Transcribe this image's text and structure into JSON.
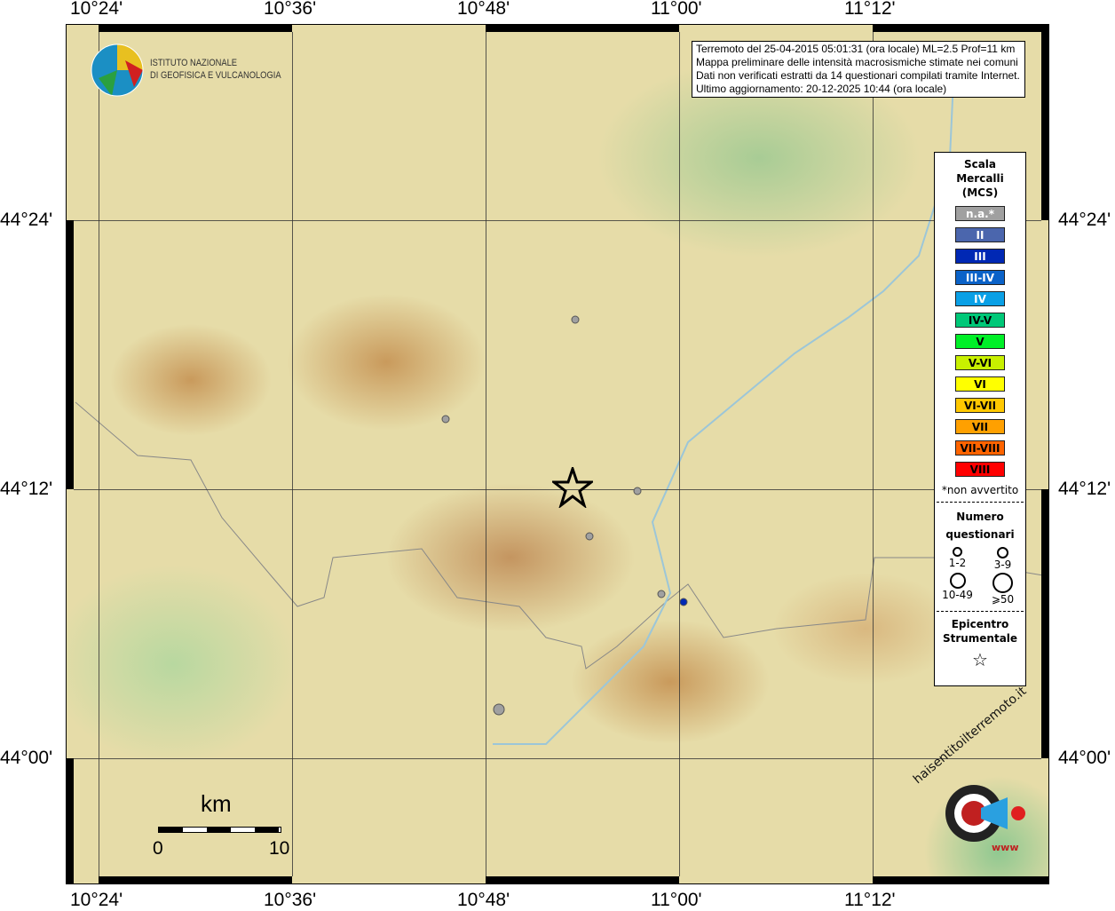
{
  "axes": {
    "top": [
      "10°24'",
      "10°36'",
      "10°48'",
      "11°00'",
      "11°12'"
    ],
    "bottom": [
      "10°24'",
      "10°36'",
      "10°48'",
      "11°00'",
      "11°12'"
    ],
    "left": [
      "44°24'",
      "44°12'",
      "44°00'"
    ],
    "right": [
      "44°24'",
      "44°12'",
      "44°00'"
    ]
  },
  "logo": {
    "line1": "ISTITUTO NAZIONALE",
    "line2": "DI GEOFISICA E VULCANOLOGIA"
  },
  "info": [
    "Terremoto del 25-04-2015 05:01:31 (ora locale) ML=2.5 Prof=11 km",
    "Mappa preliminare delle intensità macrosismiche stimate nei comuni",
    "Dati non verificati estratti da 14 questionari compilati tramite Internet.",
    "Ultimo aggiornamento: 20-12-2025 10:44 (ora locale)"
  ],
  "legend": {
    "title": [
      "Scala",
      "Mercalli",
      "(MCS)"
    ],
    "scale": [
      {
        "label": "n.a.*",
        "color": "#a0a0a0",
        "text": "#fff"
      },
      {
        "label": "II",
        "color": "#4b66ad",
        "text": "#fff"
      },
      {
        "label": "III",
        "color": "#0028b4",
        "text": "#fff"
      },
      {
        "label": "III-IV",
        "color": "#0a62c8",
        "text": "#fff"
      },
      {
        "label": "IV",
        "color": "#0aa0e6",
        "text": "#fff"
      },
      {
        "label": "IV-V",
        "color": "#00c878",
        "text": "#000"
      },
      {
        "label": "V",
        "color": "#00f028",
        "text": "#000"
      },
      {
        "label": "V-VI",
        "color": "#c8f000",
        "text": "#000"
      },
      {
        "label": "VI",
        "color": "#ffff00",
        "text": "#000"
      },
      {
        "label": "VI-VII",
        "color": "#ffc800",
        "text": "#000"
      },
      {
        "label": "VII",
        "color": "#ffa000",
        "text": "#000"
      },
      {
        "label": "VII-VIII",
        "color": "#ff6400",
        "text": "#000"
      },
      {
        "label": "VIII",
        "color": "#ff0000",
        "text": "#000"
      }
    ],
    "note": "*non avvertito",
    "count_title": [
      "Numero",
      "questionari"
    ],
    "counts": [
      "1-2",
      "3-9",
      "10-49",
      "⩾50"
    ],
    "epicenter_title": [
      "Epicentro",
      "Strumentale"
    ]
  },
  "scalebar": {
    "unit": "km",
    "start": "0",
    "end": "10"
  },
  "brand": {
    "text": "haisentitoilterremoto.it",
    "url": "www"
  },
  "points": [
    {
      "lon": 10.893,
      "lat": 44.326,
      "intensity": "n.a.*",
      "count": "1-2"
    },
    {
      "lon": 10.759,
      "lat": 44.252,
      "intensity": "n.a.*",
      "count": "1-2"
    },
    {
      "lon": 10.957,
      "lat": 44.199,
      "intensity": "n.a.*",
      "count": "1-2"
    },
    {
      "lon": 10.907,
      "lat": 44.165,
      "intensity": "n.a.*",
      "count": "1-2"
    },
    {
      "lon": 10.982,
      "lat": 44.122,
      "intensity": "n.a.*",
      "count": "1-2"
    },
    {
      "lon": 11.005,
      "lat": 44.116,
      "intensity": "III",
      "count": "1-2"
    },
    {
      "lon": 10.814,
      "lat": 44.036,
      "intensity": "n.a.*",
      "count": "3-9"
    }
  ],
  "epicenter": {
    "lon": 10.902,
    "lat": 44.198
  }
}
